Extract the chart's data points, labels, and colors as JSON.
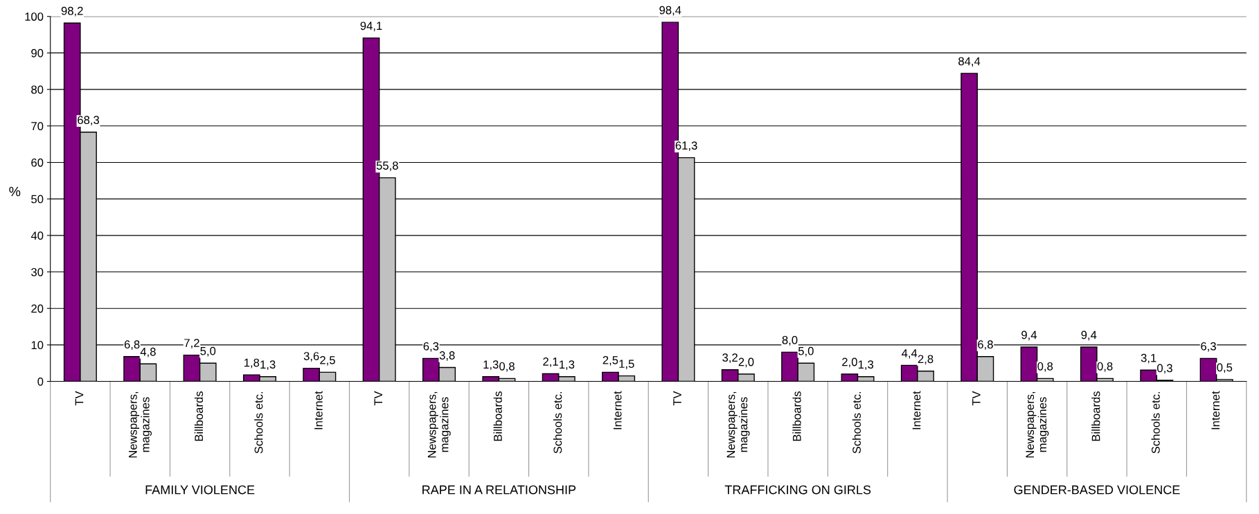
{
  "chart_data": {
    "type": "bar",
    "ylabel": "%",
    "categories": [
      "TV",
      "Newspapers, magazines",
      "Billboards",
      "Schools etc.",
      "Internet",
      "TV",
      "Newspapers, magazines",
      "Billboards",
      "Schools etc.",
      "Internet",
      "TV",
      "Newspapers, magazines",
      "Billboards",
      "Schools etc.",
      "Internet",
      "TV",
      "Newspapers, magazines",
      "Billboards",
      "Schools etc.",
      "Internet"
    ],
    "series": [
      {
        "color": "#800080",
        "values": [
          98.2,
          6.8,
          7.2,
          1.8,
          3.6,
          94.1,
          6.3,
          1.3,
          2.1,
          2.5,
          98.4,
          3.2,
          8.0,
          2.0,
          4.4,
          84.4,
          9.4,
          9.4,
          3.1,
          6.3
        ],
        "value_labels": [
          "98,2",
          "6,8",
          "7,2",
          "1,8",
          "3,6",
          "94,1",
          "6,3",
          "1,3",
          "2,1",
          "2,5",
          "98,4",
          "3,2",
          "8,0",
          "2,0",
          "4,4",
          "84,4",
          "9,4",
          "9,4",
          "3,1",
          "6,3"
        ]
      },
      {
        "color": "#c0c0c0",
        "values": [
          68.3,
          4.8,
          5.0,
          1.3,
          2.5,
          55.8,
          3.8,
          0.8,
          1.3,
          1.5,
          61.3,
          2.0,
          5.0,
          1.3,
          2.8,
          6.8,
          0.8,
          0.8,
          0.3,
          0.5
        ],
        "value_labels": [
          "68,3",
          "4,8",
          "5,0",
          "1,3",
          "2,5",
          "55,8",
          "3,8",
          "0,8",
          "1,3",
          "1,5",
          "61,3",
          "2,0",
          "5,0",
          "1,3",
          "2,8",
          "6,8",
          "0,8",
          "0,8",
          "0,3",
          "0,5"
        ]
      }
    ],
    "annotations": [
      "FAMILY VIOLENCE",
      "RAPE IN A RELATIONSHIP",
      "TRAFFICKING ON GIRLS",
      "GENDER-BASED VIOLENCE"
    ],
    "ylim": [
      0,
      100
    ],
    "yticks": [
      0,
      10,
      20,
      30,
      40,
      50,
      60,
      70,
      80,
      90,
      100
    ],
    "grid": "y",
    "legend": false
  }
}
